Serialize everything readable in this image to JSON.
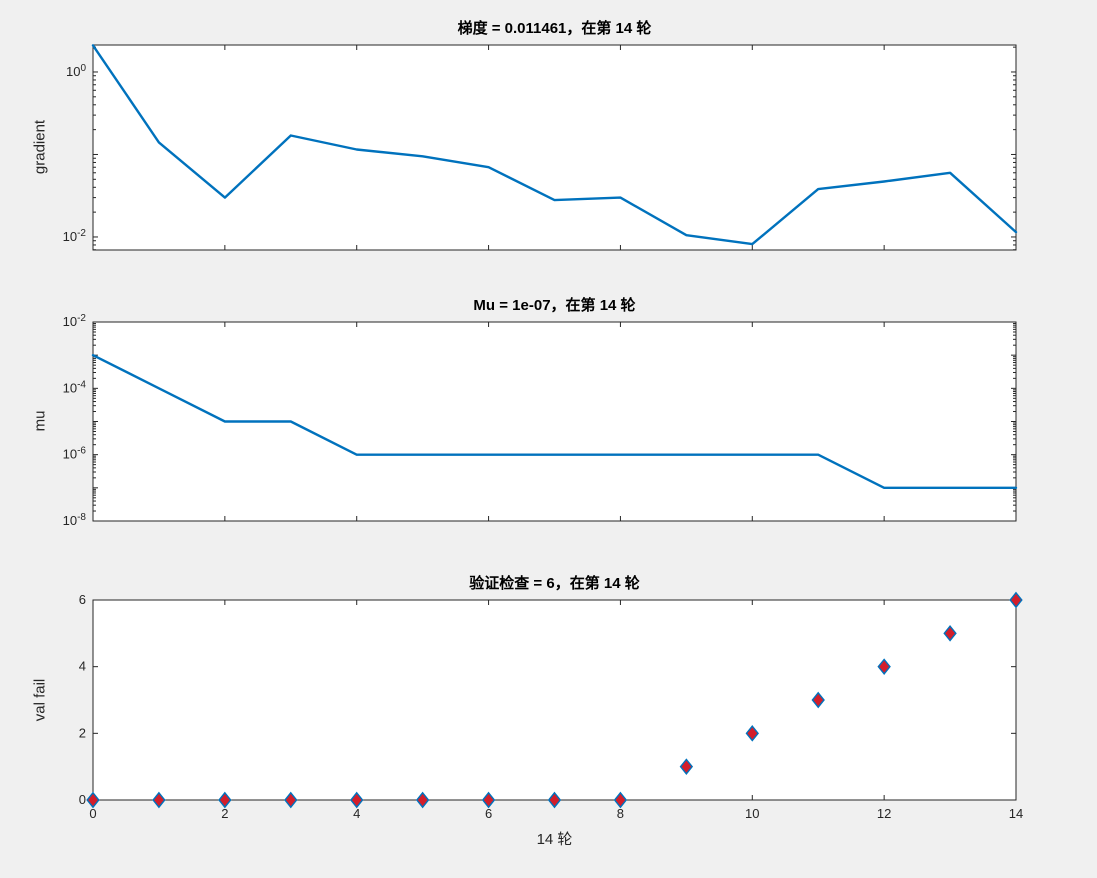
{
  "figure": {
    "background": "#f0f0f0",
    "axes_background": "#ffffff",
    "axes_color": "#262626",
    "line_color": "#0072bd",
    "marker_fill": "#d21e2b",
    "marker_edge": "#0072bd",
    "xlabel": "14 轮"
  },
  "chart_data": [
    {
      "type": "line",
      "title": "梯度 = 0.011461，在第 14 轮",
      "ylabel": "gradient",
      "yscale": "log",
      "final_value": 0.011461,
      "x": [
        0,
        1,
        2,
        3,
        4,
        5,
        6,
        7,
        8,
        9,
        10,
        11,
        12,
        13,
        14
      ],
      "values": [
        2.1,
        0.14,
        0.03,
        0.17,
        0.115,
        0.095,
        0.07,
        0.028,
        0.03,
        0.0105,
        0.0082,
        0.038,
        0.047,
        0.06,
        0.011461
      ],
      "ylim_exp": [
        -2.158,
        0.327
      ],
      "ytick_exponents": [
        0,
        -2
      ],
      "xlim": [
        0,
        14
      ],
      "xticks": [
        0,
        2,
        4,
        6,
        8,
        10,
        12,
        14
      ],
      "show_x_labels": false,
      "grid": false,
      "legend": null
    },
    {
      "type": "line",
      "title": "Mu = 1e-07，在第 14 轮",
      "ylabel": "mu",
      "yscale": "log",
      "final_value": 1e-07,
      "x": [
        0,
        1,
        2,
        3,
        4,
        5,
        6,
        7,
        8,
        9,
        10,
        11,
        12,
        13,
        14
      ],
      "values": [
        0.001,
        0.0001,
        1e-05,
        1e-05,
        1e-06,
        1e-06,
        1e-06,
        1e-06,
        1e-06,
        1e-06,
        1e-06,
        1e-06,
        1e-07,
        1e-07,
        1e-07
      ],
      "ylim_exp": [
        -8,
        -2
      ],
      "ytick_exponents": [
        -2,
        -4,
        -6,
        -8
      ],
      "xlim": [
        0,
        14
      ],
      "xticks": [
        0,
        2,
        4,
        6,
        8,
        10,
        12,
        14
      ],
      "show_x_labels": false,
      "grid": false,
      "legend": null
    },
    {
      "type": "scatter",
      "title": "验证检查 = 6，在第 14 轮",
      "ylabel": "val fail",
      "yscale": "linear",
      "marker": "diamond",
      "final_value": 6,
      "x": [
        0,
        1,
        2,
        3,
        4,
        5,
        6,
        7,
        8,
        9,
        10,
        11,
        12,
        13,
        14
      ],
      "values": [
        0,
        0,
        0,
        0,
        0,
        0,
        0,
        0,
        0,
        1,
        2,
        3,
        4,
        5,
        6
      ],
      "ylim": [
        0,
        6
      ],
      "yticks": [
        0,
        2,
        4,
        6
      ],
      "xlim": [
        0,
        14
      ],
      "xticks": [
        0,
        2,
        4,
        6,
        8,
        10,
        12,
        14
      ],
      "show_x_labels": true,
      "grid": false,
      "legend": null
    }
  ]
}
